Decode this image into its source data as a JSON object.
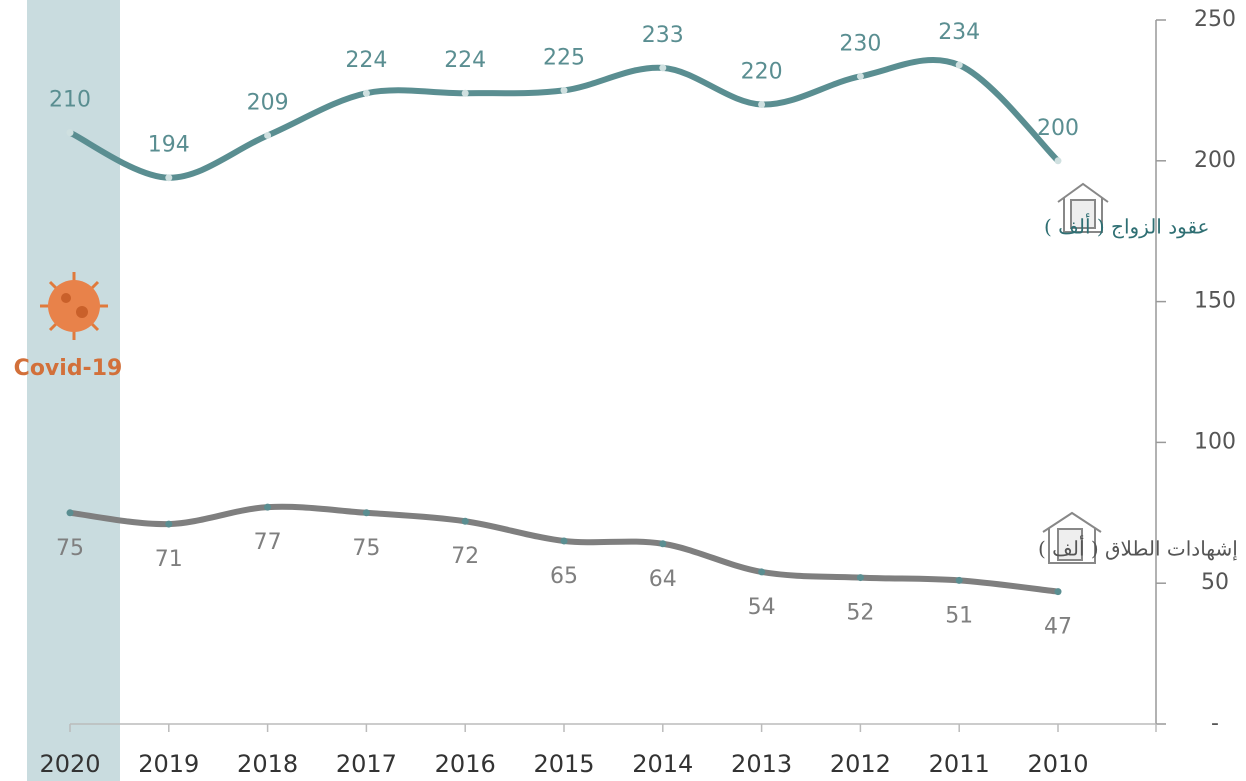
{
  "chart_data": {
    "type": "line",
    "categories": [
      "2020",
      "2019",
      "2018",
      "2017",
      "2016",
      "2015",
      "2014",
      "2013",
      "2012",
      "2011",
      "2010"
    ],
    "series": [
      {
        "name": "عقود الزواج ( ألف )",
        "color": "#5a8e91",
        "values": [
          210,
          194,
          209,
          224,
          224,
          225,
          233,
          220,
          230,
          234,
          200
        ]
      },
      {
        "name": "إشهادات الطلاق ( ألف )",
        "color": "#7f7f7f",
        "values": [
          75,
          71,
          77,
          75,
          72,
          65,
          64,
          54,
          52,
          51,
          47
        ]
      }
    ],
    "ylim": [
      0,
      250
    ],
    "yticks": [
      {
        "value": 0,
        "label": "-"
      },
      50,
      100,
      150,
      200,
      250
    ],
    "annotation": "Covid-19",
    "smooth": true
  }
}
